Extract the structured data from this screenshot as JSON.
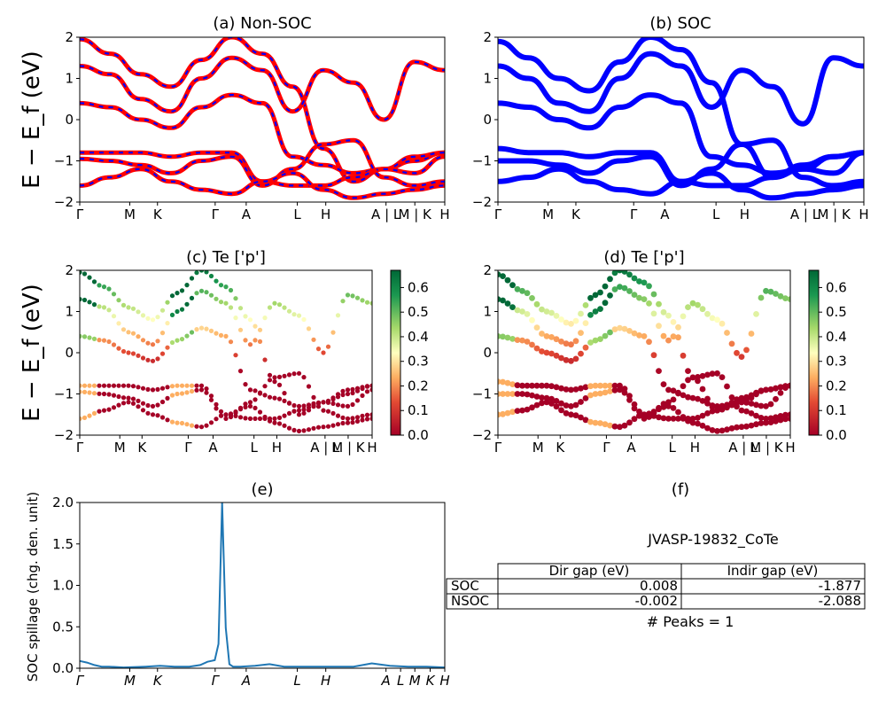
{
  "colors": {
    "nonsoc_outer": "#ff0000",
    "nonsoc_inner": "#0000ff",
    "soc": "#0000ff",
    "spillage": "#1f77b4"
  },
  "kpath": [
    "Γ",
    "M",
    "K",
    "Γ",
    "A",
    "L",
    "H",
    "A | L",
    "M | K",
    "H"
  ],
  "kpath_ab": [
    "Γ",
    "M",
    "K",
    "Γ",
    "A",
    "L",
    "H",
    "A | L",
    "M | K",
    "H"
  ],
  "kpath_e": [
    "Γ",
    "M",
    "K",
    "Γ",
    "A",
    "L",
    "H",
    "A",
    "L",
    "M",
    "K",
    "H"
  ],
  "ylabel_bands": "E − E_f (eV)",
  "colorbar": {
    "cmap": "RdYlGn",
    "range": [
      0.0,
      0.67
    ],
    "ticks": [
      "0.0",
      "0.1",
      "0.2",
      "0.3",
      "0.4",
      "0.5",
      "0.6"
    ]
  },
  "chart_data": [
    {
      "panel": "a",
      "type": "line",
      "title": "(a) Non-SOC",
      "ylim": [
        -2,
        2
      ],
      "yticks": [
        "2",
        "1",
        "0",
        "−1",
        "−2"
      ],
      "series": [
        {
          "values": [
            1.95,
            1.6,
            1.1,
            0.8,
            1.45,
            2.0,
            1.6,
            0.8,
            -0.7,
            -1.5,
            -1.2,
            -1.0,
            -0.8
          ]
        },
        {
          "values": [
            1.3,
            1.1,
            0.5,
            0.2,
            1.0,
            1.5,
            1.2,
            0.2,
            1.2,
            0.9,
            0.0,
            1.4,
            1.2
          ]
        },
        {
          "values": [
            0.4,
            0.3,
            0.0,
            -0.2,
            0.3,
            0.6,
            0.4,
            -0.9,
            -1.1,
            -1.3,
            -1.2,
            -0.9,
            -0.8
          ]
        },
        {
          "values": [
            -0.8,
            -0.8,
            -0.8,
            -0.9,
            -0.8,
            -0.8,
            -1.5,
            -1.6,
            -1.6,
            -1.4,
            -1.2,
            -1.3,
            -0.9
          ]
        },
        {
          "values": [
            -0.95,
            -1.0,
            -1.1,
            -1.3,
            -1.0,
            -0.9,
            -1.6,
            -1.2,
            -0.6,
            -0.5,
            -1.4,
            -1.6,
            -1.5
          ]
        },
        {
          "values": [
            -1.6,
            -1.4,
            -1.2,
            -1.5,
            -1.7,
            -1.8,
            -1.5,
            -1.3,
            -1.7,
            -1.9,
            -1.8,
            -1.7,
            -1.6
          ]
        }
      ]
    },
    {
      "panel": "b",
      "type": "line",
      "title": "(b) SOC",
      "ylim": [
        -2,
        2
      ],
      "yticks": [
        "2",
        "1",
        "0",
        "−1",
        "−2"
      ],
      "series": [
        {
          "values": [
            1.9,
            1.5,
            1.0,
            0.7,
            1.4,
            2.0,
            1.7,
            0.9,
            -0.6,
            -1.4,
            -1.1,
            -0.9,
            -0.8
          ]
        },
        {
          "values": [
            1.3,
            1.0,
            0.4,
            0.2,
            1.0,
            1.6,
            1.3,
            0.3,
            1.2,
            0.8,
            -0.1,
            1.5,
            1.3
          ]
        },
        {
          "values": [
            0.4,
            0.3,
            0.0,
            -0.2,
            0.3,
            0.6,
            0.4,
            -0.9,
            -1.1,
            -1.3,
            -1.2,
            -0.9,
            -0.8
          ]
        },
        {
          "values": [
            -0.7,
            -0.8,
            -0.8,
            -0.9,
            -0.8,
            -0.8,
            -1.5,
            -1.6,
            -1.6,
            -1.4,
            -1.2,
            -1.3,
            -0.8
          ]
        },
        {
          "values": [
            -1.0,
            -1.0,
            -1.1,
            -1.3,
            -1.0,
            -0.9,
            -1.6,
            -1.2,
            -0.6,
            -0.5,
            -1.4,
            -1.6,
            -1.5
          ]
        },
        {
          "values": [
            -1.5,
            -1.4,
            -1.2,
            -1.5,
            -1.7,
            -1.8,
            -1.5,
            -1.3,
            -1.7,
            -1.9,
            -1.8,
            -1.7,
            -1.6
          ]
        }
      ]
    },
    {
      "panel": "c",
      "type": "scatter",
      "title": "(c)  Te ['p']",
      "ylim": [
        -2,
        2
      ],
      "yticks": [
        "2",
        "1",
        "0",
        "−1",
        "−2"
      ]
    },
    {
      "panel": "d",
      "type": "scatter",
      "title": "(d) Te ['p']",
      "ylim": [
        -2,
        2
      ],
      "yticks": [
        "2",
        "1",
        "0",
        "−1",
        "−2"
      ]
    },
    {
      "panel": "e",
      "type": "line",
      "title": "(e)",
      "ylabel": "SOC spillage (chg. den. unit)",
      "ylim": [
        0,
        2.05
      ],
      "yticks": [
        "2.0",
        "1.5",
        "1.0",
        "0.5",
        "0.0"
      ],
      "x": [
        0.0,
        0.02,
        0.04,
        0.06,
        0.08,
        0.12,
        0.18,
        0.22,
        0.26,
        0.3,
        0.33,
        0.35,
        0.36,
        0.37,
        0.38,
        0.39,
        0.4,
        0.41,
        0.42,
        0.44,
        0.48,
        0.52,
        0.56,
        0.6,
        0.65,
        0.7,
        0.75,
        0.8,
        0.85,
        0.9,
        0.95,
        1.0
      ],
      "y": [
        0.09,
        0.07,
        0.04,
        0.02,
        0.02,
        0.01,
        0.02,
        0.03,
        0.02,
        0.02,
        0.04,
        0.08,
        0.09,
        0.1,
        0.3,
        2.05,
        0.5,
        0.05,
        0.02,
        0.02,
        0.03,
        0.05,
        0.02,
        0.02,
        0.02,
        0.02,
        0.02,
        0.06,
        0.03,
        0.02,
        0.02,
        0.01
      ]
    }
  ],
  "panel_f": {
    "title": "(f)",
    "caption": "JVASP-19832_CoTe",
    "col_headers": [
      "Dir gap (eV)",
      "Indir gap (eV)"
    ],
    "rows": [
      {
        "label": "SOC",
        "dir": "0.008",
        "indir": "-1.877"
      },
      {
        "label": "NSOC",
        "dir": "-0.002",
        "indir": "-2.088"
      }
    ],
    "peaks": "# Peaks = 1"
  }
}
